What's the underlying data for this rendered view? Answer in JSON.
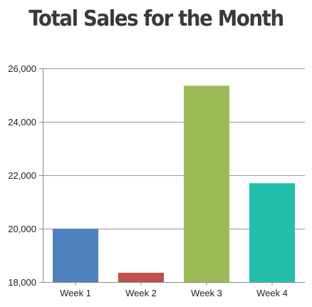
{
  "chart_data": {
    "type": "bar",
    "title": "Total Sales for the Month",
    "xlabel": "",
    "ylabel": "",
    "categories": [
      "Week 1",
      "Week 2",
      "Week 3",
      "Week 4"
    ],
    "values": [
      20000,
      18350,
      25350,
      21700
    ],
    "colors": [
      "#4f81bd",
      "#c0504d",
      "#9bbb59",
      "#23bfaa"
    ],
    "ylim": [
      18000,
      26000
    ],
    "yticks": [
      18000,
      20000,
      22000,
      24000,
      26000
    ],
    "ytick_labels": [
      "18,000",
      "20,000",
      "22,000",
      "24,000",
      "26,000"
    ],
    "grid": true,
    "legend": "none"
  }
}
